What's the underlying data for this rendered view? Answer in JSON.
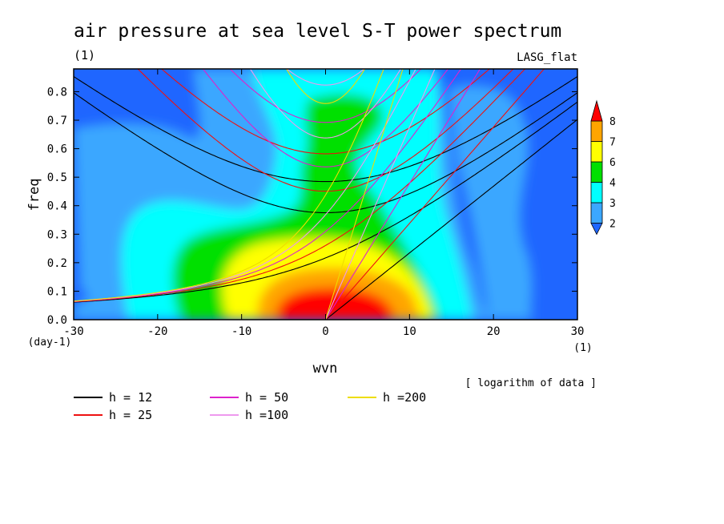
{
  "chart_data": {
    "type": "heatmap",
    "title": "air pressure at sea level S-T power spectrum",
    "subtitle": "(1)",
    "top_right_label": "LASG_flat",
    "xlabel": "wvn",
    "x_unit": "(1)",
    "ylabel": "freq",
    "y_unit": "(day-1)",
    "xlim": [
      -30,
      30
    ],
    "ylim": [
      0,
      0.88
    ],
    "xticks": [
      -30,
      -20,
      -10,
      0,
      10,
      20,
      30
    ],
    "xtick_labels": [
      "-30",
      "-20",
      "-10",
      "0",
      "10",
      "20",
      "30"
    ],
    "yticks": [
      0,
      0.1,
      0.2,
      0.3,
      0.4,
      0.5,
      0.6,
      0.7,
      0.8
    ],
    "ytick_labels": [
      "0.0",
      "0.1",
      "0.2",
      "0.3",
      "0.4",
      "0.5",
      "0.6",
      "0.7",
      "0.8"
    ],
    "grid": false,
    "colorbar": {
      "levels": [
        "2",
        "3",
        "4",
        "6",
        "7",
        "8"
      ],
      "colors": [
        "#1f66ff",
        "#3ba7ff",
        "#00ffff",
        "#00e000",
        "#ffff00",
        "#ffa500",
        "#ff0000"
      ]
    },
    "data_note": "[ logarithm of data ]",
    "dispersion_curves": [
      {
        "label": "h = 12",
        "h": 12,
        "color": "#000000"
      },
      {
        "label": "h = 25",
        "h": 25,
        "color": "#ee1111"
      },
      {
        "label": "h = 50",
        "h": 50,
        "color": "#dd22cc"
      },
      {
        "label": "h =100",
        "h": 100,
        "color": "#ee99ee"
      },
      {
        "label": "h =200",
        "h": 200,
        "color": "#eedd00"
      }
    ]
  }
}
